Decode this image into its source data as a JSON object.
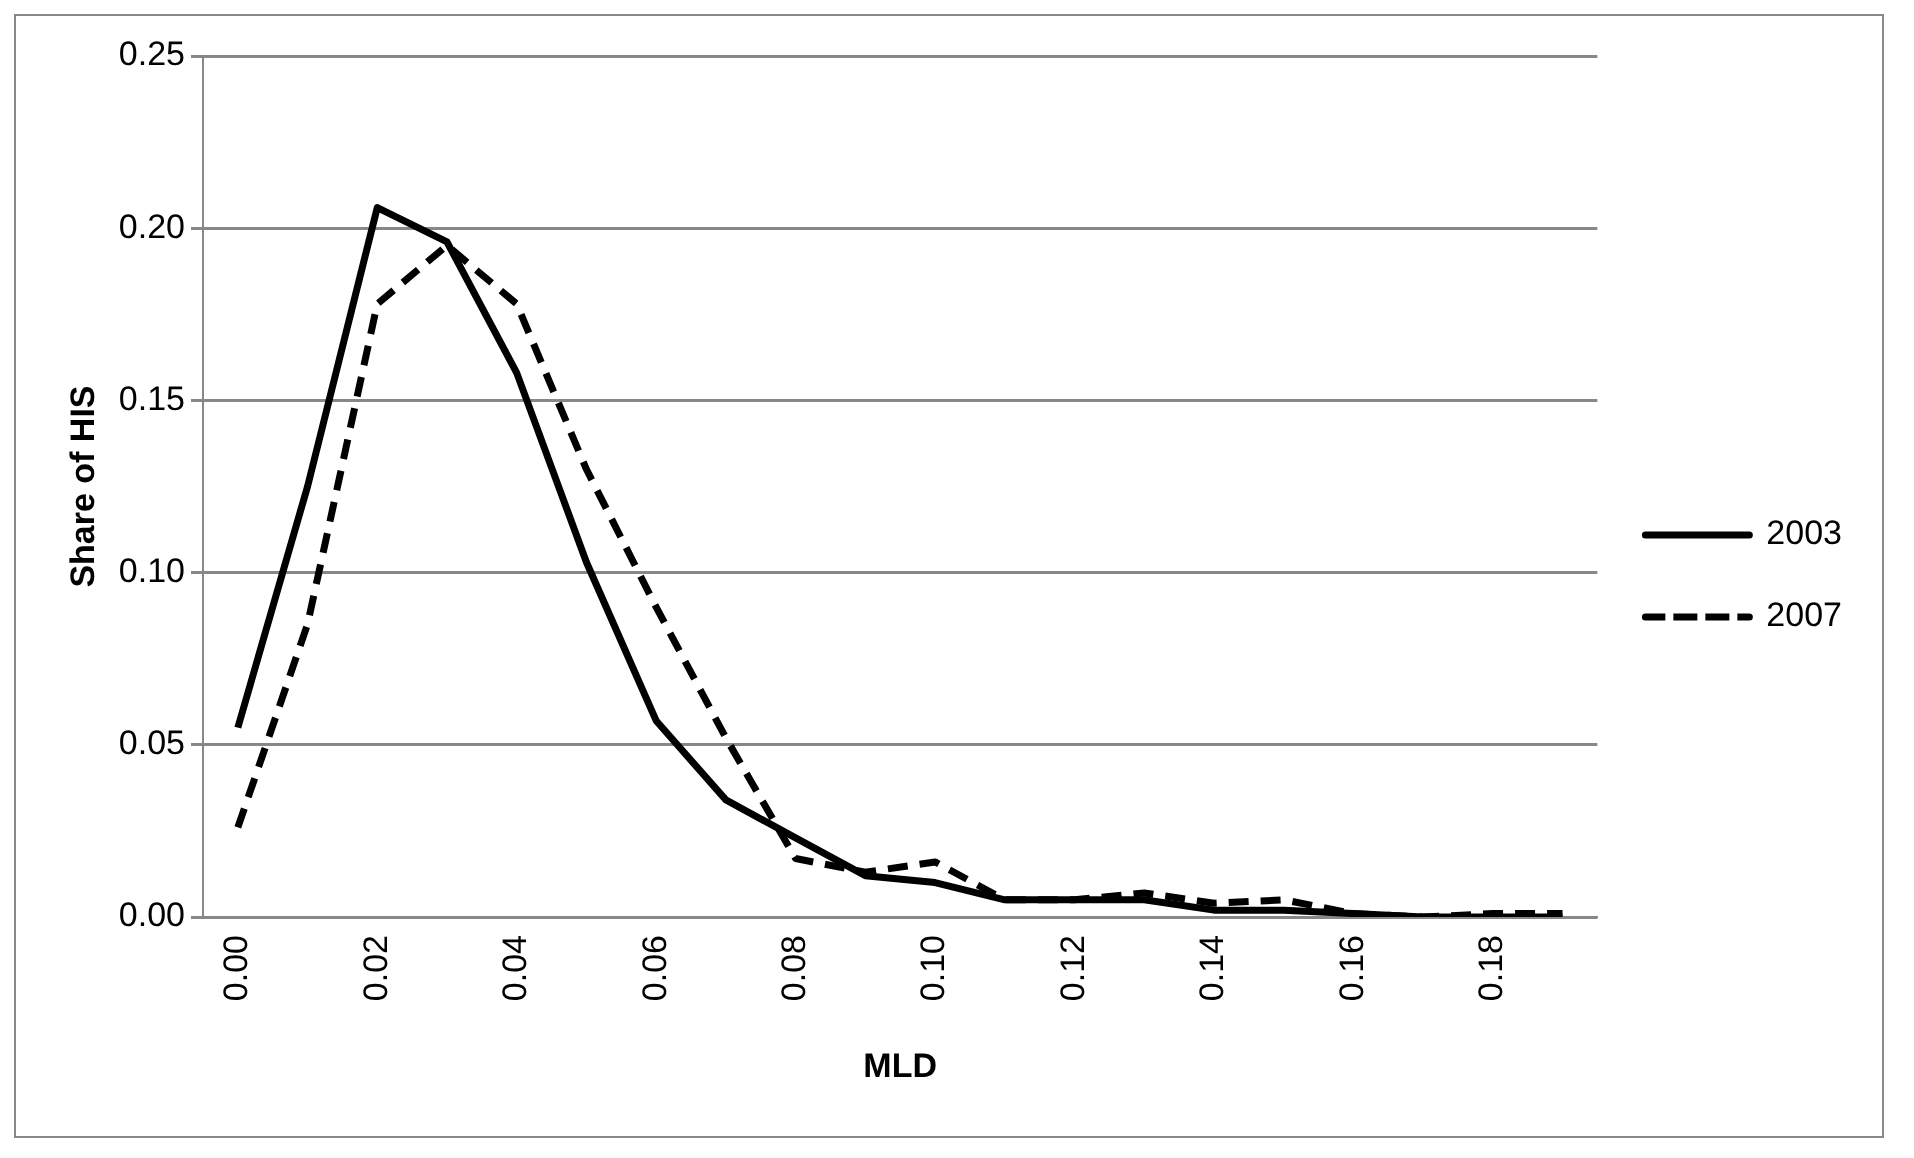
{
  "chart_data": {
    "type": "line",
    "xlabel": "MLD",
    "ylabel": "Share of HIS",
    "categories": [
      "0.00",
      null,
      "0.02",
      null,
      "0.04",
      null,
      "0.06",
      null,
      "0.08",
      null,
      "0.10",
      null,
      "0.12",
      null,
      "0.14",
      null,
      "0.16",
      null,
      "0.18",
      null
    ],
    "series": [
      {
        "name": "2003",
        "color": "#000000",
        "line_style": "solid",
        "values": [
          0.055,
          0.125,
          0.206,
          0.196,
          0.158,
          0.103,
          0.057,
          0.034,
          0.023,
          0.012,
          0.01,
          0.005,
          0.005,
          0.005,
          0.002,
          0.002,
          0.001,
          0.0,
          0.0,
          0.0
        ]
      },
      {
        "name": "2007",
        "color": "#000000",
        "line_style": "dashed",
        "values": [
          0.026,
          0.085,
          0.178,
          0.195,
          0.178,
          0.13,
          0.09,
          0.052,
          0.017,
          0.013,
          0.016,
          0.005,
          0.005,
          0.007,
          0.004,
          0.005,
          0.001,
          0.0,
          0.001,
          0.001
        ]
      }
    ],
    "ylim": [
      0,
      0.25
    ],
    "yticks": [
      {
        "value": 0,
        "label": "0.00"
      },
      {
        "value": 0.05,
        "label": "0.05"
      },
      {
        "value": 0.1,
        "label": "0.10"
      },
      {
        "value": 0.15,
        "label": "0.15"
      },
      {
        "value": 0.2,
        "label": "0.20"
      },
      {
        "value": 0.25,
        "label": "0.25"
      }
    ],
    "grid": "y",
    "legend": "right",
    "marker": "none"
  }
}
